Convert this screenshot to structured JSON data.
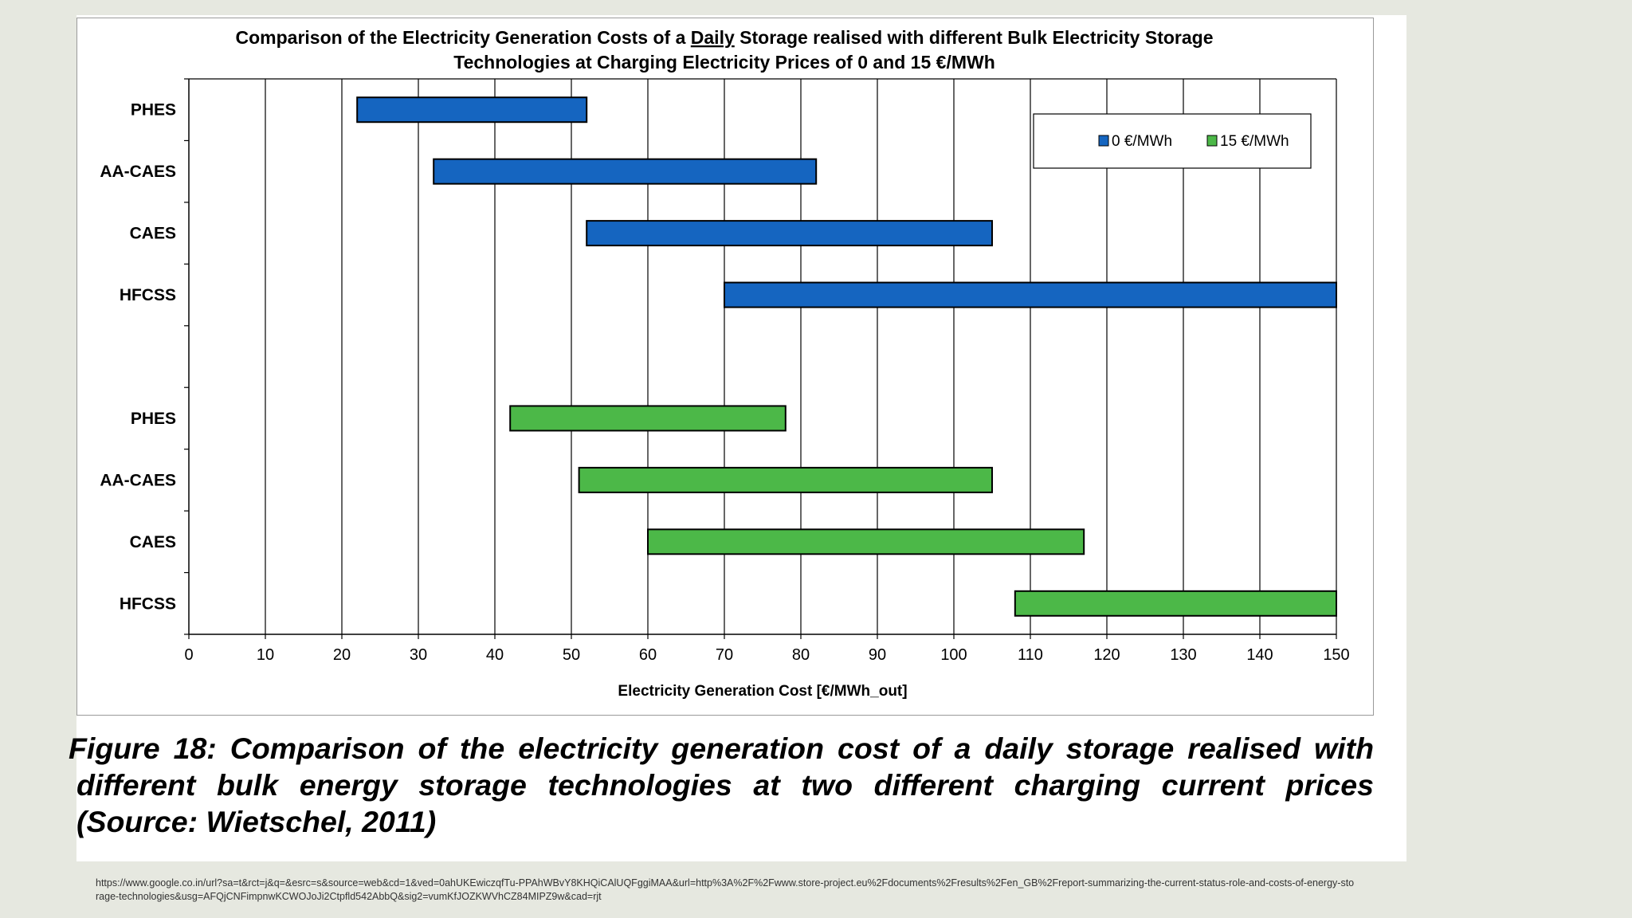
{
  "chart_data": {
    "type": "bar",
    "subtype": "floating-range-horizontal",
    "title_line1": {
      "pre": "Comparison of the Electricity Generation Costs of a ",
      "emph": "Daily",
      "post": " Storage realised with different Bulk Electricity Storage"
    },
    "title_line2": "Technologies at Charging Electricity Prices of 0 and 15 €/MWh",
    "xlabel": "Electricity Generation Cost [€/MWh_out]",
    "ylabel": "",
    "xlim": [
      0,
      150
    ],
    "xticks": [
      "0",
      "10",
      "20",
      "30",
      "40",
      "50",
      "60",
      "70",
      "80",
      "90",
      "100",
      "110",
      "120",
      "130",
      "140",
      "150"
    ],
    "grid": "vertical",
    "legend_position": "top-right",
    "series": [
      {
        "name": "0 €/MWh",
        "color": "#1565c0",
        "categories": [
          "PHES",
          "AA-CAES",
          "CAES",
          "HFCSS"
        ],
        "ranges": [
          [
            22,
            52
          ],
          [
            32,
            82
          ],
          [
            52,
            105
          ],
          [
            70,
            150
          ]
        ]
      },
      {
        "name": "15 €/MWh",
        "color": "#4cb848",
        "categories": [
          "PHES",
          "AA-CAES",
          "CAES",
          "HFCSS"
        ],
        "ranges": [
          [
            42,
            78
          ],
          [
            51,
            105
          ],
          [
            60,
            117
          ],
          [
            108,
            150
          ]
        ]
      }
    ]
  },
  "caption": "Figure 18: Comparison of the electricity generation cost of a daily storage realised with different bulk energy storage technologies at two different charging current prices (Source: Wietschel, 2011)",
  "source_url": "https://www.google.co.in/url?sa=t&rct=j&q=&esrc=s&source=web&cd=1&ved=0ahUKEwiczqfTu-PPAhWBvY8KHQiCAlUQFggiMAA&url=http%3A%2F%2Fwww.store-project.eu%2Fdocuments%2Fresults%2Fen_GB%2Freport-summarizing-the-current-status-role-and-costs-of-energy-storage-technologies&usg=AFQjCNFimpnwKCWOJoJi2Ctpfld542AbbQ&sig2=vumKfJOZKWVhCZ84MIPZ9w&cad=rjt"
}
